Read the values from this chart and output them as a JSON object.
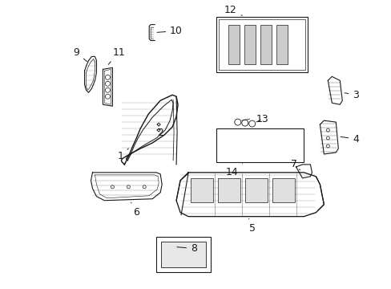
{
  "background_color": "#ffffff",
  "fig_width": 4.89,
  "fig_height": 3.6,
  "dpi": 100,
  "line_color": "#1a1a1a",
  "font_size": 9
}
